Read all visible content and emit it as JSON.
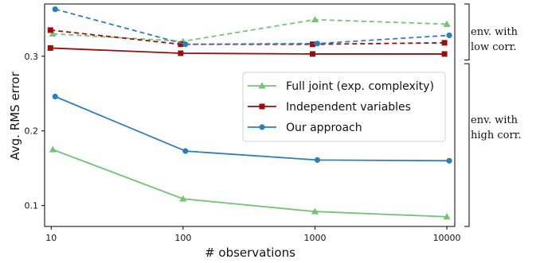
{
  "chart_data": {
    "type": "line",
    "xlabel": "# observations",
    "ylabel": "Avg. RMS error",
    "x_scale": "log",
    "x": [
      10,
      100,
      1000,
      10000
    ],
    "x_ticks": [
      10,
      100,
      1000,
      10000
    ],
    "x_tick_labels": [
      "10",
      "100",
      "1000",
      "10000"
    ],
    "y_ticks": [
      0.1,
      0.2,
      0.3
    ],
    "y_tick_labels": [
      "0.1",
      "0.2",
      "0.3"
    ],
    "ylim": [
      0.072,
      0.37
    ],
    "legend_position": "right",
    "series": [
      {
        "name": "Full joint (exp. complexity)",
        "color": "#74c476",
        "marker": "triangle",
        "style": "solid",
        "values": [
          0.175,
          0.109,
          0.092,
          0.085
        ]
      },
      {
        "name": "Independent variables",
        "color": "#9b0d0d",
        "marker": "square",
        "style": "solid",
        "values": [
          0.311,
          0.304,
          0.303,
          0.303
        ]
      },
      {
        "name": "Our approach",
        "color": "#2c7fb8",
        "marker": "circle",
        "style": "solid",
        "values": [
          0.246,
          0.173,
          0.161,
          0.16
        ]
      },
      {
        "name": "",
        "color": "#74c476",
        "marker": "triangle",
        "style": "dashed",
        "values": [
          0.33,
          0.32,
          0.349,
          0.343
        ]
      },
      {
        "name": "",
        "color": "#9b0d0d",
        "marker": "square",
        "style": "dashed",
        "values": [
          0.335,
          0.316,
          0.316,
          0.318
        ]
      },
      {
        "name": "",
        "color": "#2c7fb8",
        "marker": "circle",
        "style": "dashed",
        "values": [
          0.363,
          0.316,
          0.317,
          0.328
        ]
      }
    ],
    "annotations": [
      {
        "lines": [
          "env. with",
          "low corr."
        ],
        "range": [
          0.295,
          0.37
        ]
      },
      {
        "lines": [
          "env. with",
          "high corr."
        ],
        "range": [
          0.072,
          0.29
        ]
      }
    ]
  }
}
